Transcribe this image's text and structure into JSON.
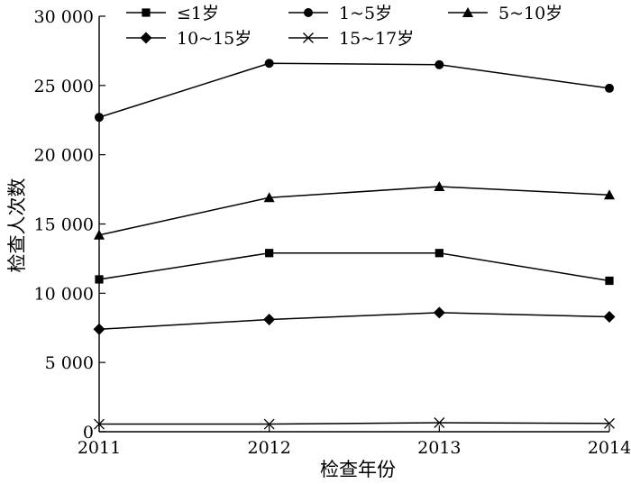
{
  "chart_data": {
    "type": "line",
    "title": "",
    "xlabel": "检查年份",
    "ylabel": "检查人次数",
    "categories": [
      "2011",
      "2012",
      "2013",
      "2014"
    ],
    "ylim": [
      0,
      30000
    ],
    "yticks": [
      0,
      5000,
      10000,
      15000,
      20000,
      25000,
      30000
    ],
    "ytick_labels": [
      "0",
      "5 000",
      "10 000",
      "15 000",
      "20 000",
      "25 000",
      "30 000"
    ],
    "grid": false,
    "legend": "top",
    "series": [
      {
        "name": "≤1岁",
        "marker": "square",
        "values": [
          11000,
          12900,
          12900,
          10900
        ]
      },
      {
        "name": "1~5岁",
        "marker": "circle",
        "values": [
          22700,
          26600,
          26500,
          24800
        ]
      },
      {
        "name": "5~10岁",
        "marker": "triangle",
        "values": [
          14200,
          16900,
          17700,
          17100
        ]
      },
      {
        "name": "10~15岁",
        "marker": "diamond",
        "values": [
          7400,
          8100,
          8600,
          8300
        ]
      },
      {
        "name": "15~17岁",
        "marker": "x",
        "values": [
          550,
          550,
          650,
          600
        ]
      }
    ]
  }
}
